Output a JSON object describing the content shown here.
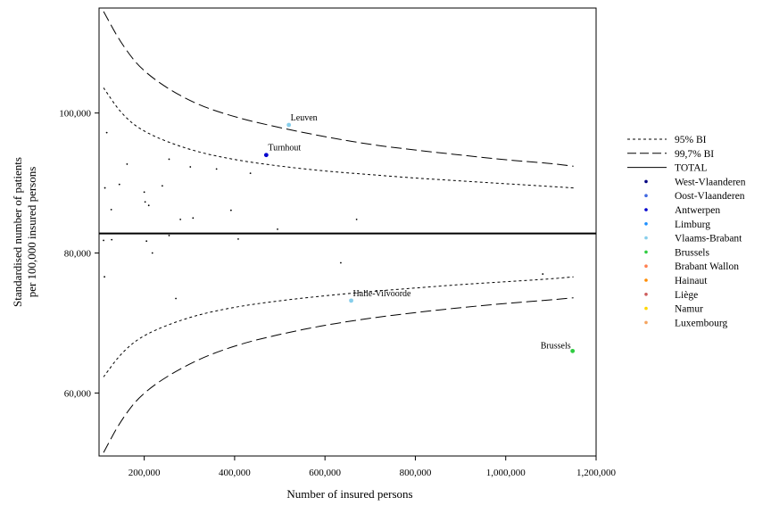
{
  "chart_data": {
    "type": "scatter",
    "xlabel": "Number of insured persons",
    "ylabel_lines": [
      "Standardised number of patients",
      "per 100,000 insured persons"
    ],
    "xlim": [
      100000,
      1200000
    ],
    "ylim": [
      51000,
      115000
    ],
    "x_ticks": [
      200000,
      400000,
      600000,
      800000,
      1000000,
      1200000
    ],
    "x_tick_labels": [
      "200,000",
      "400,000",
      "600,000",
      "800,000",
      "1,000,000",
      "1,200,000"
    ],
    "y_ticks": [
      60000,
      80000,
      100000
    ],
    "y_tick_labels": [
      "60,000",
      "80,000",
      "100,000"
    ],
    "total": 82800,
    "curves": {
      "ci95_upper": [
        [
          110000,
          103600
        ],
        [
          150000,
          99800
        ],
        [
          200000,
          97200
        ],
        [
          300000,
          94700
        ],
        [
          400000,
          93300
        ],
        [
          500000,
          92400
        ],
        [
          600000,
          91700
        ],
        [
          700000,
          91200
        ],
        [
          800000,
          90700
        ],
        [
          900000,
          90300
        ],
        [
          1000000,
          89900
        ],
        [
          1100000,
          89500
        ],
        [
          1150000,
          89300
        ]
      ],
      "ci95_lower": [
        [
          110000,
          62300
        ],
        [
          150000,
          65800
        ],
        [
          200000,
          68400
        ],
        [
          300000,
          70900
        ],
        [
          400000,
          72300
        ],
        [
          500000,
          73200
        ],
        [
          600000,
          73900
        ],
        [
          700000,
          74500
        ],
        [
          800000,
          75000
        ],
        [
          900000,
          75500
        ],
        [
          1000000,
          75900
        ],
        [
          1100000,
          76300
        ],
        [
          1150000,
          76600
        ]
      ],
      "ci997_upper": [
        [
          110000,
          114500
        ],
        [
          150000,
          109800
        ],
        [
          200000,
          105700
        ],
        [
          300000,
          101600
        ],
        [
          400000,
          99400
        ],
        [
          500000,
          97900
        ],
        [
          600000,
          96600
        ],
        [
          700000,
          95500
        ],
        [
          800000,
          94700
        ],
        [
          900000,
          94000
        ],
        [
          1000000,
          93300
        ],
        [
          1100000,
          92800
        ],
        [
          1150000,
          92400
        ]
      ],
      "ci997_lower": [
        [
          110000,
          51500
        ],
        [
          150000,
          56300
        ],
        [
          200000,
          60300
        ],
        [
          300000,
          64300
        ],
        [
          400000,
          66800
        ],
        [
          500000,
          68400
        ],
        [
          600000,
          69700
        ],
        [
          700000,
          70700
        ],
        [
          800000,
          71500
        ],
        [
          900000,
          72200
        ],
        [
          1000000,
          72800
        ],
        [
          1100000,
          73300
        ],
        [
          1150000,
          73600
        ]
      ]
    },
    "labeled_points": [
      {
        "label": "Leuven",
        "x": 520000,
        "y": 98300,
        "color": "#87ceeb"
      },
      {
        "label": "Turnhout",
        "x": 470000,
        "y": 94000,
        "color": "#0000cd"
      },
      {
        "label": "Halle-Vilvoorde",
        "x": 658000,
        "y": 73200,
        "color": "#87ceeb"
      },
      {
        "label": "Brussels",
        "x": 1148000,
        "y": 66000,
        "color": "#2ecc40"
      }
    ],
    "other_points": [
      [
        113000,
        89300
      ],
      [
        117000,
        97200
      ],
      [
        127000,
        86200
      ],
      [
        145000,
        89800
      ],
      [
        162000,
        92700
      ],
      [
        200000,
        88700
      ],
      [
        202000,
        87300
      ],
      [
        210000,
        86800
      ],
      [
        240000,
        89600
      ],
      [
        255000,
        93400
      ],
      [
        280000,
        84800
      ],
      [
        302000,
        92300
      ],
      [
        308000,
        85000
      ],
      [
        360000,
        92000
      ],
      [
        392000,
        86100
      ],
      [
        435000,
        91400
      ],
      [
        670000,
        84800
      ],
      [
        110000,
        81800
      ],
      [
        128000,
        81900
      ],
      [
        205000,
        81700
      ],
      [
        218000,
        80000
      ],
      [
        255000,
        82500
      ],
      [
        408000,
        82000
      ],
      [
        495000,
        83400
      ],
      [
        112000,
        76600
      ],
      [
        270000,
        73500
      ],
      [
        635000,
        78600
      ],
      [
        1082000,
        77000
      ]
    ],
    "legend": [
      {
        "label": "95% BI",
        "kind": "dotted"
      },
      {
        "label": "99,7% BI",
        "kind": "dashed"
      },
      {
        "label": "TOTAL",
        "kind": "solid"
      },
      {
        "label": "West-Vlaanderen",
        "kind": "dot",
        "color": "#000080"
      },
      {
        "label": "Oost-Vlaanderen",
        "kind": "dot",
        "color": "#4169e1"
      },
      {
        "label": "Antwerpen",
        "kind": "dot",
        "color": "#0000cd"
      },
      {
        "label": "Limburg",
        "kind": "dot",
        "color": "#1e90ff"
      },
      {
        "label": "Vlaams-Brabant",
        "kind": "dot",
        "color": "#87ceeb"
      },
      {
        "label": "Brussels",
        "kind": "dot",
        "color": "#2ecc40"
      },
      {
        "label": "Brabant Wallon",
        "kind": "dot",
        "color": "#ff7f50"
      },
      {
        "label": "Hainaut",
        "kind": "dot",
        "color": "#ff8c00"
      },
      {
        "label": "Liège",
        "kind": "dot",
        "color": "#cd5c5c"
      },
      {
        "label": "Namur",
        "kind": "dot",
        "color": "#ffd700"
      },
      {
        "label": "Luxembourg",
        "kind": "dot",
        "color": "#f4a460"
      }
    ],
    "legend_position": "right"
  }
}
